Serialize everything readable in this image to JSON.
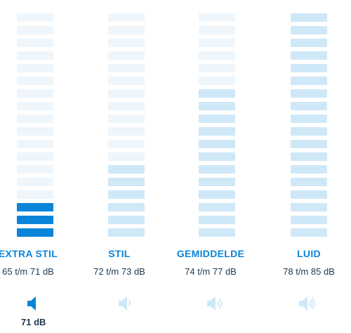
{
  "levels": [
    {
      "label": "EXTRA STIL",
      "range": "65 t/m 71 dB",
      "fill_segments": 3,
      "active": true
    },
    {
      "label": "STIL",
      "range": "72 t/m 73 dB",
      "fill_segments": 6,
      "active": false
    },
    {
      "label": "GEMIDDELDE",
      "range": "74 t/m 77 dB",
      "fill_segments": 12,
      "active": false
    },
    {
      "label": "LUID",
      "range": "78 t/m 85 dB",
      "fill_segments": 18,
      "active": false
    }
  ],
  "total_segments": 18,
  "current_value": "71 dB",
  "icons": [
    "speaker-mute-icon",
    "speaker-low-icon",
    "speaker-medium-icon",
    "speaker-high-icon"
  ],
  "colors": {
    "accent": "#0a84d8",
    "light": "#cfe8f8",
    "faint": "#eef6fc",
    "icon_inactive": "#cfe8f8",
    "text": "#1d3850"
  }
}
